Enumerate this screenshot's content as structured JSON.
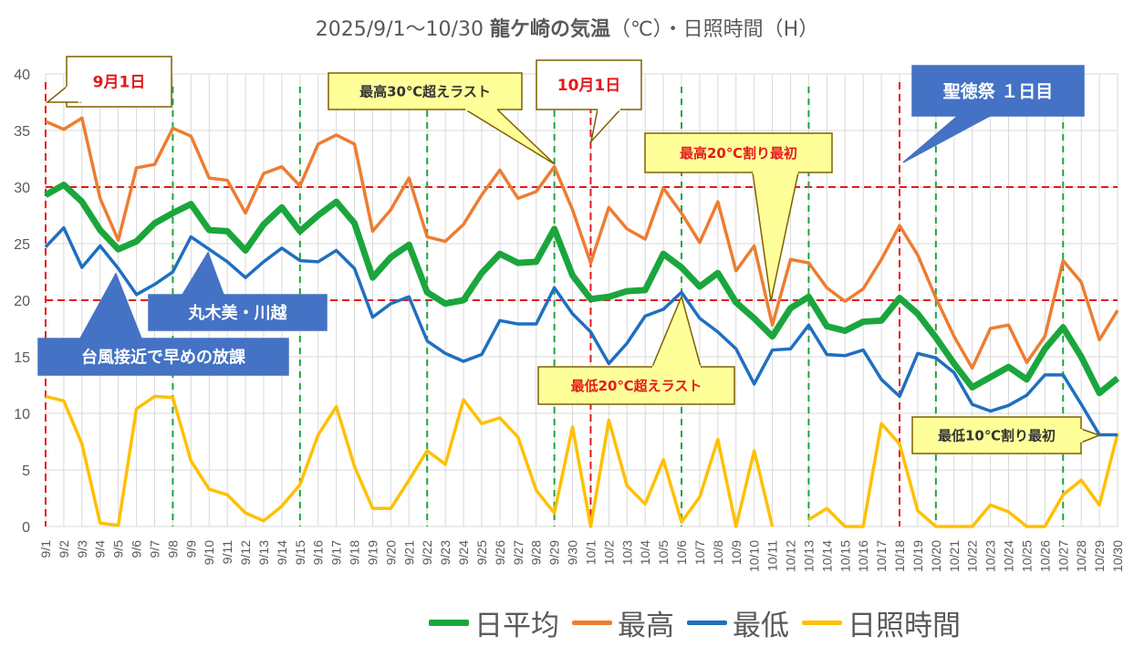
{
  "title": {
    "part1": "2025/9/1～10/30 ",
    "part2": "龍ケ崎の気温",
    "part3": "（℃）・日照時間（H）"
  },
  "colors": {
    "avg": "#1aa63c",
    "max": "#ed7d31",
    "min": "#1f6fc0",
    "sun": "#ffc000",
    "redline": "#e31a1c",
    "greenline": "#1aa63c",
    "grid": "#d9d9d9",
    "callout_yellow": "#ffff99",
    "callout_blue": "#4472c4"
  },
  "chart_data": {
    "type": "line",
    "title": "2025/9/1～10/30 龍ケ崎の気温（℃）・日照時間（H）",
    "ylim": [
      0,
      40
    ],
    "yticks": [
      0,
      5,
      10,
      15,
      20,
      25,
      30,
      35,
      40
    ],
    "grid": true,
    "legend_placement": "bottom",
    "x": [
      "9/1",
      "9/2",
      "9/3",
      "9/4",
      "9/5",
      "9/6",
      "9/7",
      "9/8",
      "9/9",
      "9/10",
      "9/11",
      "9/12",
      "9/13",
      "9/14",
      "9/15",
      "9/16",
      "9/17",
      "9/18",
      "9/19",
      "9/20",
      "9/21",
      "9/22",
      "9/23",
      "9/24",
      "9/25",
      "9/26",
      "9/27",
      "9/28",
      "9/29",
      "9/30",
      "10/1",
      "10/2",
      "10/3",
      "10/4",
      "10/5",
      "10/6",
      "10/7",
      "10/8",
      "10/9",
      "10/10",
      "10/11",
      "10/12",
      "10/13",
      "10/14",
      "10/15",
      "10/16",
      "10/17",
      "10/18",
      "10/19",
      "10/20",
      "10/21",
      "10/22",
      "10/23",
      "10/24",
      "10/25",
      "10/26",
      "10/27",
      "10/28",
      "10/29",
      "10/30"
    ],
    "series": [
      {
        "name": "日平均",
        "key": "avg",
        "values": [
          29.3,
          30.2,
          28.7,
          26.2,
          24.5,
          25.2,
          26.8,
          27.7,
          28.5,
          26.2,
          26.1,
          24.4,
          26.7,
          28.2,
          26.1,
          27.5,
          28.7,
          26.8,
          22.0,
          23.8,
          24.9,
          20.7,
          19.7,
          20.0,
          22.4,
          24.1,
          23.3,
          23.4,
          26.3,
          22.2,
          20.1,
          20.3,
          20.8,
          20.9,
          24.1,
          22.9,
          21.2,
          22.4,
          19.8,
          18.4,
          16.8,
          19.3,
          20.3,
          17.7,
          17.3,
          18.1,
          18.2,
          20.2,
          18.8,
          16.7,
          14.4,
          12.3,
          13.2,
          14.1,
          13.0,
          15.7,
          17.6,
          15.0,
          11.8,
          13.1
        ]
      },
      {
        "name": "最高",
        "key": "max",
        "values": [
          35.8,
          35.1,
          36.1,
          29.0,
          25.3,
          31.7,
          32.0,
          35.2,
          34.5,
          30.8,
          30.6,
          27.7,
          31.2,
          31.8,
          30.1,
          33.8,
          34.6,
          33.8,
          26.1,
          28.0,
          30.8,
          25.6,
          25.2,
          26.7,
          29.3,
          31.5,
          29.0,
          29.6,
          31.8,
          28.0,
          23.3,
          28.2,
          26.3,
          25.4,
          29.9,
          27.7,
          25.1,
          28.7,
          22.6,
          24.8,
          17.8,
          23.6,
          23.3,
          21.1,
          19.9,
          21.0,
          23.6,
          26.6,
          24.0,
          20.2,
          16.8,
          14.0,
          17.5,
          17.8,
          14.5,
          16.8,
          23.5,
          21.6,
          16.5,
          19.1
        ]
      },
      {
        "name": "最低",
        "key": "min",
        "values": [
          24.7,
          26.4,
          22.9,
          24.8,
          22.8,
          20.5,
          21.4,
          22.5,
          25.6,
          24.5,
          23.4,
          22.0,
          23.4,
          24.6,
          23.5,
          23.4,
          24.4,
          22.8,
          18.5,
          19.7,
          20.3,
          16.4,
          15.3,
          14.6,
          15.2,
          18.2,
          17.9,
          17.9,
          21.1,
          18.8,
          17.2,
          14.4,
          16.2,
          18.6,
          19.2,
          20.7,
          18.4,
          17.2,
          15.7,
          12.6,
          15.6,
          15.7,
          17.8,
          15.2,
          15.1,
          15.6,
          13.0,
          11.5,
          15.3,
          14.9,
          13.6,
          10.8,
          10.2,
          10.7,
          11.6,
          13.4,
          13.4,
          10.8,
          8.1,
          8.1
        ]
      },
      {
        "name": "日照時間",
        "key": "sun",
        "values": [
          11.5,
          11.1,
          7.3,
          0.3,
          0.1,
          10.4,
          11.5,
          11.4,
          5.8,
          3.3,
          2.8,
          1.2,
          0.5,
          1.8,
          3.7,
          8.1,
          10.6,
          5.3,
          1.6,
          1.6,
          4.1,
          6.7,
          5.5,
          11.2,
          9.1,
          9.6,
          7.9,
          3.2,
          1.2,
          8.8,
          0.0,
          9.4,
          3.6,
          2.0,
          5.9,
          0.4,
          2.6,
          7.7,
          0.0,
          6.7,
          0.0,
          null,
          0.6,
          1.6,
          0.0,
          0.0,
          9.1,
          7.3,
          1.4,
          0.0,
          0.0,
          0.0,
          1.9,
          1.3,
          0.0,
          0.0,
          2.8,
          4.1,
          1.9,
          8.2
        ]
      }
    ],
    "reference_lines": {
      "horizontal_red": [
        30,
        20
      ],
      "vertical_red": [
        "9/1",
        "10/1",
        "10/18"
      ],
      "vertical_green": [
        "9/8",
        "9/15",
        "9/22",
        "9/29",
        "10/6",
        "10/13",
        "10/20",
        "10/27"
      ]
    },
    "annotations": [
      {
        "key": "sep1",
        "text": "9月1日",
        "style": "white",
        "target": "9/1"
      },
      {
        "key": "max30",
        "text": "最高30℃超えラスト",
        "style": "yellow",
        "target": "9/29"
      },
      {
        "key": "oct1",
        "text": "10月1日",
        "style": "white",
        "target": "10/1"
      },
      {
        "key": "max20",
        "text": "最高20℃割り最初",
        "style": "yellow-red",
        "target": "10/11"
      },
      {
        "key": "fest",
        "text": "聖徳祭 １日目",
        "style": "blue",
        "target": "10/18"
      },
      {
        "key": "maruki",
        "text": "丸木美・川越",
        "style": "blue",
        "target": "9/10"
      },
      {
        "key": "typhoon",
        "text": "台風接近で早めの放課",
        "style": "blue",
        "target": "9/5"
      },
      {
        "key": "min20",
        "text": "最低20℃超えラスト",
        "style": "yellow-red",
        "target": "10/6"
      },
      {
        "key": "min10",
        "text": "最低10℃割り最初",
        "style": "yellow",
        "target": "10/29"
      }
    ]
  }
}
